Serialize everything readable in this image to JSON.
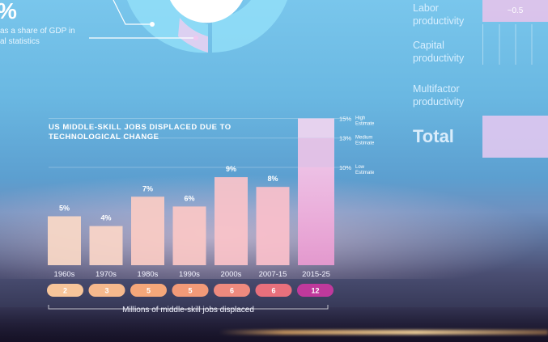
{
  "header_stats": {
    "percent_symbol": "%",
    "gdp_note_line1": "as a share of GDP in",
    "gdp_note_line2": "al statistics"
  },
  "right_panel": {
    "labor": "Labor productivity",
    "capital": "Capital productivity",
    "multifactor": "Multifactor productivity",
    "total": "Total",
    "labor_value": "~0.5"
  },
  "chart_data": {
    "type": "bar",
    "title": "US MIDDLE-SKILL JOBS DISPLACED DUE TO TECHNOLOGICAL CHANGE",
    "categories": [
      "1960s",
      "1970s",
      "1980s",
      "1990s",
      "2000s",
      "2007-15",
      "2015-25"
    ],
    "percent_labels": [
      "5%",
      "4%",
      "7%",
      "6%",
      "9%",
      "8%",
      ""
    ],
    "values": [
      5,
      4,
      7,
      6,
      9,
      8,
      10
    ],
    "stacked_estimates": [
      {
        "label": "Low Estimate",
        "value": 10,
        "pct_label": "10%"
      },
      {
        "label": "Medium Estimate",
        "value": 13,
        "pct_label": "13%"
      },
      {
        "label": "High Estimate",
        "value": 15,
        "pct_label": "15%"
      }
    ],
    "jobs_millions": [
      "2",
      "3",
      "5",
      "5",
      "6",
      "6",
      "12"
    ],
    "pill_colors": [
      "#f7c59a",
      "#f6b98d",
      "#f5a77a",
      "#f29a78",
      "#ee8a7e",
      "#e8707c",
      "#c0399c"
    ],
    "bar_colors": [
      "#fbd9c7",
      "#fbd6c8",
      "#fbccc4",
      "#fbc8c5",
      "#fbc3c9",
      "#fbc0cb",
      "#e89ad0"
    ],
    "xlabel": "Millions of middle-skill jobs displaced",
    "ylim": [
      0,
      15
    ]
  }
}
